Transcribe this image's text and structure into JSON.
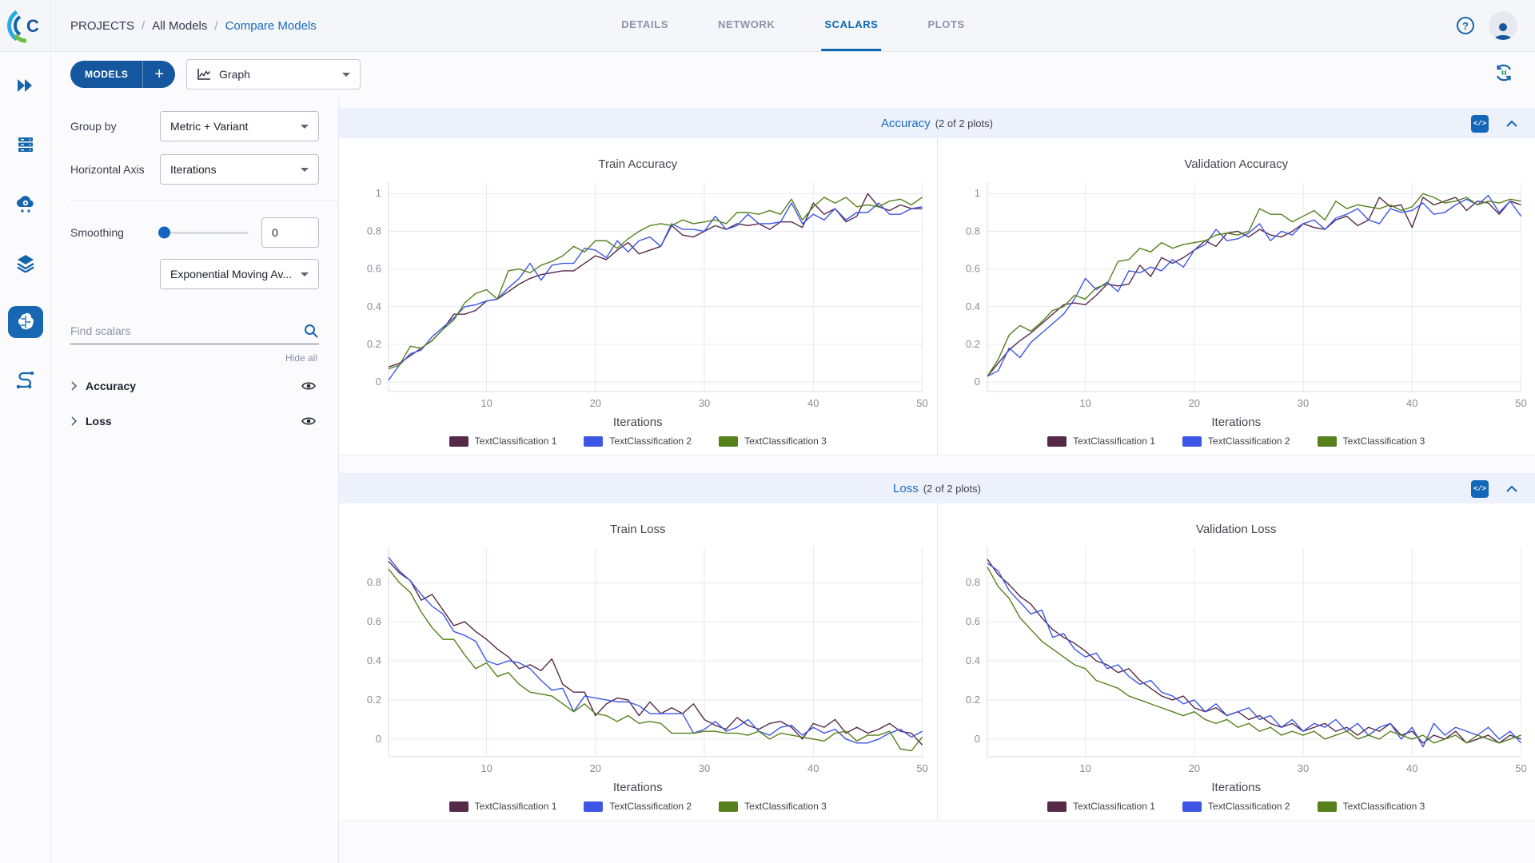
{
  "breadcrumb": {
    "items": [
      "PROJECTS",
      "All Models",
      "Compare Models"
    ],
    "separator": "/"
  },
  "tabs": [
    {
      "label": "DETAILS",
      "active": false
    },
    {
      "label": "NETWORK",
      "active": false
    },
    {
      "label": "SCALARS",
      "active": true
    },
    {
      "label": "PLOTS",
      "active": false
    }
  ],
  "toolbar": {
    "models_label": "MODELS",
    "add_label": "+",
    "view_selector_value": "Graph"
  },
  "controls": {
    "group_by_label": "Group by",
    "group_by_value": "Metric + Variant",
    "horizontal_axis_label": "Horizontal Axis",
    "horizontal_axis_value": "Iterations",
    "smoothing_label": "Smoothing",
    "smoothing_value": "0",
    "smoothing_type_value": "Exponential Moving Av...",
    "search_placeholder": "Find scalars",
    "hide_all_label": "Hide all",
    "metric_groups": [
      {
        "label": "Accuracy"
      },
      {
        "label": "Loss"
      }
    ]
  },
  "sections": [
    {
      "title": "Accuracy",
      "count_label": "(2 of 2 plots)"
    },
    {
      "title": "Loss",
      "count_label": "(2 of 2 plots)"
    }
  ],
  "colors": {
    "accent_blue": "#1565ab",
    "active_tab": "#0d67b2",
    "section_header_bg": "#edf1fb",
    "series1": "#562949",
    "series2": "#3d56e6",
    "series3": "#55801c",
    "grid": "#e7e9f3",
    "axis": "#d9dbe7",
    "tick_text": "#8b8b98"
  },
  "chart_data": [
    {
      "type": "line",
      "title": "Train Accuracy",
      "xlabel": "Iterations",
      "xlim": [
        1,
        50
      ],
      "ylim": [
        -0.05,
        1.06
      ],
      "x_ticks": [
        10,
        20,
        30,
        40,
        50
      ],
      "y_ticks": [
        0,
        0.2,
        0.4,
        0.6,
        0.8,
        1
      ],
      "grid": true,
      "legend_position": "bottom",
      "x": [
        1,
        2,
        3,
        4,
        5,
        6,
        7,
        8,
        9,
        10,
        11,
        12,
        13,
        14,
        15,
        16,
        17,
        18,
        19,
        20,
        21,
        22,
        23,
        24,
        25,
        26,
        27,
        28,
        29,
        30,
        31,
        32,
        33,
        34,
        35,
        36,
        37,
        38,
        39,
        40,
        41,
        42,
        43,
        44,
        45,
        46,
        47,
        48,
        49,
        50
      ],
      "series": [
        {
          "name": "TextClassification 1",
          "color": "#562949",
          "values": [
            0.08,
            0.1,
            0.14,
            0.18,
            0.22,
            0.28,
            0.36,
            0.36,
            0.38,
            0.43,
            0.44,
            0.48,
            0.52,
            0.55,
            0.57,
            0.58,
            0.59,
            0.59,
            0.63,
            0.67,
            0.65,
            0.7,
            0.74,
            0.68,
            0.7,
            0.72,
            0.83,
            0.78,
            0.77,
            0.8,
            0.83,
            0.81,
            0.84,
            0.83,
            0.84,
            0.81,
            0.85,
            0.85,
            0.82,
            0.95,
            0.89,
            0.92,
            0.85,
            0.88,
            1.0,
            0.93,
            0.91,
            0.94,
            0.92,
            0.92
          ]
        },
        {
          "name": "TextClassification 2",
          "color": "#3d56e6",
          "values": [
            0.01,
            0.09,
            0.15,
            0.17,
            0.24,
            0.29,
            0.34,
            0.4,
            0.41,
            0.43,
            0.44,
            0.5,
            0.55,
            0.63,
            0.54,
            0.62,
            0.63,
            0.63,
            0.71,
            0.7,
            0.66,
            0.75,
            0.69,
            0.75,
            0.77,
            0.72,
            0.84,
            0.81,
            0.81,
            0.8,
            0.88,
            0.81,
            0.83,
            0.89,
            0.84,
            0.84,
            0.85,
            0.95,
            0.84,
            0.89,
            0.86,
            0.92,
            0.86,
            0.9,
            0.9,
            0.95,
            0.89,
            0.89,
            0.92,
            0.93
          ]
        },
        {
          "name": "TextClassification 3",
          "color": "#55801c",
          "values": [
            0.07,
            0.09,
            0.19,
            0.18,
            0.22,
            0.28,
            0.33,
            0.42,
            0.47,
            0.49,
            0.44,
            0.59,
            0.6,
            0.58,
            0.62,
            0.64,
            0.67,
            0.72,
            0.69,
            0.75,
            0.75,
            0.71,
            0.76,
            0.8,
            0.83,
            0.84,
            0.83,
            0.86,
            0.84,
            0.85,
            0.86,
            0.84,
            0.9,
            0.9,
            0.89,
            0.91,
            0.89,
            0.97,
            0.86,
            0.93,
            0.98,
            0.95,
            0.98,
            0.93,
            0.94,
            0.93,
            0.96,
            0.97,
            0.94,
            0.98
          ]
        }
      ]
    },
    {
      "type": "line",
      "title": "Validation Accuracy",
      "xlabel": "Iterations",
      "xlim": [
        1,
        50
      ],
      "ylim": [
        -0.05,
        1.06
      ],
      "x_ticks": [
        10,
        20,
        30,
        40,
        50
      ],
      "y_ticks": [
        0,
        0.2,
        0.4,
        0.6,
        0.8,
        1
      ],
      "grid": true,
      "legend_position": "bottom",
      "x": [
        1,
        2,
        3,
        4,
        5,
        6,
        7,
        8,
        9,
        10,
        11,
        12,
        13,
        14,
        15,
        16,
        17,
        18,
        19,
        20,
        21,
        22,
        23,
        24,
        25,
        26,
        27,
        28,
        29,
        30,
        31,
        32,
        33,
        34,
        35,
        36,
        37,
        38,
        39,
        40,
        41,
        42,
        43,
        44,
        45,
        46,
        47,
        48,
        49,
        50
      ],
      "series": [
        {
          "name": "TextClassification 1",
          "color": "#562949",
          "values": [
            0.03,
            0.1,
            0.17,
            0.22,
            0.26,
            0.31,
            0.36,
            0.41,
            0.42,
            0.41,
            0.46,
            0.52,
            0.51,
            0.52,
            0.62,
            0.56,
            0.66,
            0.63,
            0.66,
            0.7,
            0.75,
            0.72,
            0.79,
            0.8,
            0.77,
            0.81,
            0.78,
            0.77,
            0.8,
            0.84,
            0.82,
            0.81,
            0.86,
            0.88,
            0.83,
            0.86,
            0.98,
            0.93,
            0.94,
            0.82,
            0.98,
            0.94,
            0.96,
            0.98,
            0.91,
            0.96,
            0.95,
            0.89,
            0.96,
            0.94
          ]
        },
        {
          "name": "TextClassification 2",
          "color": "#3d56e6",
          "values": [
            0.03,
            0.06,
            0.18,
            0.13,
            0.21,
            0.26,
            0.31,
            0.36,
            0.44,
            0.55,
            0.49,
            0.53,
            0.48,
            0.59,
            0.58,
            0.61,
            0.59,
            0.65,
            0.61,
            0.7,
            0.73,
            0.81,
            0.75,
            0.76,
            0.79,
            0.84,
            0.75,
            0.8,
            0.78,
            0.84,
            0.86,
            0.81,
            0.87,
            0.89,
            0.92,
            0.86,
            0.84,
            0.92,
            0.9,
            0.91,
            0.95,
            0.89,
            0.9,
            0.94,
            0.97,
            0.94,
            0.99,
            0.9,
            0.96,
            0.88
          ]
        },
        {
          "name": "TextClassification 3",
          "color": "#55801c",
          "values": [
            0.03,
            0.12,
            0.25,
            0.3,
            0.27,
            0.32,
            0.38,
            0.4,
            0.46,
            0.44,
            0.5,
            0.52,
            0.64,
            0.65,
            0.71,
            0.69,
            0.74,
            0.71,
            0.73,
            0.74,
            0.75,
            0.78,
            0.79,
            0.78,
            0.8,
            0.92,
            0.89,
            0.89,
            0.85,
            0.88,
            0.91,
            0.86,
            0.96,
            0.92,
            0.94,
            0.93,
            0.92,
            0.94,
            0.91,
            0.93,
            1.0,
            0.98,
            0.95,
            0.96,
            0.98,
            0.94,
            0.96,
            0.95,
            0.97,
            0.96
          ]
        }
      ]
    },
    {
      "type": "line",
      "title": "Train Loss",
      "xlabel": "Iterations",
      "xlim": [
        1,
        50
      ],
      "ylim": [
        -0.09,
        0.98
      ],
      "x_ticks": [
        10,
        20,
        30,
        40,
        50
      ],
      "y_ticks": [
        0,
        0.2,
        0.4,
        0.6,
        0.8
      ],
      "grid": true,
      "legend_position": "bottom",
      "x": [
        1,
        2,
        3,
        4,
        5,
        6,
        7,
        8,
        9,
        10,
        11,
        12,
        13,
        14,
        15,
        16,
        17,
        18,
        19,
        20,
        21,
        22,
        23,
        24,
        25,
        26,
        27,
        28,
        29,
        30,
        31,
        32,
        33,
        34,
        35,
        36,
        37,
        38,
        39,
        40,
        41,
        42,
        43,
        44,
        45,
        46,
        47,
        48,
        49,
        50
      ],
      "series": [
        {
          "name": "TextClassification 1",
          "color": "#562949",
          "values": [
            0.91,
            0.85,
            0.81,
            0.71,
            0.74,
            0.66,
            0.58,
            0.6,
            0.55,
            0.51,
            0.46,
            0.42,
            0.36,
            0.38,
            0.35,
            0.41,
            0.28,
            0.24,
            0.24,
            0.12,
            0.18,
            0.21,
            0.2,
            0.12,
            0.19,
            0.13,
            0.16,
            0.13,
            0.18,
            0.1,
            0.07,
            0.05,
            0.11,
            0.07,
            0.05,
            0.08,
            0.09,
            0.06,
            0.0,
            0.08,
            0.06,
            0.1,
            0.03,
            0.06,
            0.03,
            0.05,
            0.08,
            0.04,
            0.03,
            -0.03
          ]
        },
        {
          "name": "TextClassification 2",
          "color": "#3d56e6",
          "values": [
            0.93,
            0.86,
            0.81,
            0.74,
            0.68,
            0.64,
            0.55,
            0.53,
            0.5,
            0.4,
            0.38,
            0.4,
            0.39,
            0.36,
            0.3,
            0.25,
            0.26,
            0.14,
            0.22,
            0.21,
            0.2,
            0.19,
            0.19,
            0.17,
            0.13,
            0.13,
            0.13,
            0.13,
            0.03,
            0.05,
            0.09,
            0.04,
            0.06,
            0.1,
            0.04,
            0.02,
            0.06,
            0.07,
            0.02,
            0.06,
            0.03,
            0.05,
            0.0,
            -0.02,
            -0.02,
            0.0,
            0.03,
            0.05,
            0.01,
            0.04
          ]
        },
        {
          "name": "TextClassification 3",
          "color": "#55801c",
          "values": [
            0.87,
            0.8,
            0.75,
            0.65,
            0.57,
            0.51,
            0.51,
            0.43,
            0.36,
            0.39,
            0.32,
            0.34,
            0.28,
            0.24,
            0.23,
            0.22,
            0.18,
            0.14,
            0.18,
            0.13,
            0.12,
            0.09,
            0.12,
            0.08,
            0.09,
            0.08,
            0.03,
            0.03,
            0.03,
            0.04,
            0.04,
            0.03,
            0.03,
            0.02,
            0.04,
            0.0,
            0.03,
            0.02,
            0.01,
            0.0,
            -0.01,
            0.03,
            0.04,
            -0.01,
            0.02,
            0.02,
            0.04,
            -0.05,
            -0.06,
            0.01
          ]
        }
      ]
    },
    {
      "type": "line",
      "title": "Validation Loss",
      "xlabel": "Iterations",
      "xlim": [
        1,
        50
      ],
      "ylim": [
        -0.09,
        0.98
      ],
      "x_ticks": [
        10,
        20,
        30,
        40,
        50
      ],
      "y_ticks": [
        0,
        0.2,
        0.4,
        0.6,
        0.8
      ],
      "grid": true,
      "legend_position": "bottom",
      "x": [
        1,
        2,
        3,
        4,
        5,
        6,
        7,
        8,
        9,
        10,
        11,
        12,
        13,
        14,
        15,
        16,
        17,
        18,
        19,
        20,
        21,
        22,
        23,
        24,
        25,
        26,
        27,
        28,
        29,
        30,
        31,
        32,
        33,
        34,
        35,
        36,
        37,
        38,
        39,
        40,
        41,
        42,
        43,
        44,
        45,
        46,
        47,
        48,
        49,
        50
      ],
      "series": [
        {
          "name": "TextClassification 1",
          "color": "#562949",
          "values": [
            0.92,
            0.84,
            0.79,
            0.73,
            0.69,
            0.62,
            0.56,
            0.52,
            0.49,
            0.45,
            0.4,
            0.38,
            0.34,
            0.36,
            0.3,
            0.26,
            0.22,
            0.2,
            0.22,
            0.16,
            0.14,
            0.16,
            0.12,
            0.14,
            0.1,
            0.12,
            0.08,
            0.06,
            0.08,
            0.04,
            0.06,
            0.08,
            0.04,
            0.06,
            0.02,
            0.06,
            0.04,
            0.08,
            0.02,
            0.04,
            -0.02,
            0.02,
            0.0,
            0.04,
            -0.02,
            0.0,
            0.02,
            -0.02,
            0.02,
            0.0
          ]
        },
        {
          "name": "TextClassification 2",
          "color": "#3d56e6",
          "values": [
            0.9,
            0.86,
            0.76,
            0.7,
            0.64,
            0.66,
            0.52,
            0.54,
            0.46,
            0.42,
            0.44,
            0.36,
            0.38,
            0.32,
            0.28,
            0.3,
            0.24,
            0.22,
            0.18,
            0.2,
            0.14,
            0.18,
            0.12,
            0.14,
            0.16,
            0.1,
            0.12,
            0.06,
            0.1,
            0.04,
            0.08,
            0.06,
            0.1,
            0.04,
            0.08,
            0.02,
            0.06,
            0.08,
            0.0,
            0.06,
            -0.04,
            0.08,
            0.02,
            0.06,
            0.04,
            0.02,
            0.06,
            0.0,
            0.04,
            -0.02
          ]
        },
        {
          "name": "TextClassification 3",
          "color": "#55801c",
          "values": [
            0.88,
            0.78,
            0.72,
            0.62,
            0.56,
            0.5,
            0.46,
            0.42,
            0.38,
            0.36,
            0.3,
            0.28,
            0.26,
            0.22,
            0.2,
            0.18,
            0.16,
            0.14,
            0.12,
            0.14,
            0.1,
            0.08,
            0.1,
            0.06,
            0.08,
            0.04,
            0.06,
            0.02,
            0.04,
            0.02,
            0.04,
            0.0,
            0.02,
            0.04,
            0.0,
            0.02,
            0.0,
            0.04,
            0.02,
            0.0,
            0.02,
            -0.02,
            0.0,
            0.02,
            -0.02,
            0.02,
            0.0,
            -0.02,
            0.0,
            0.02
          ]
        }
      ]
    }
  ]
}
